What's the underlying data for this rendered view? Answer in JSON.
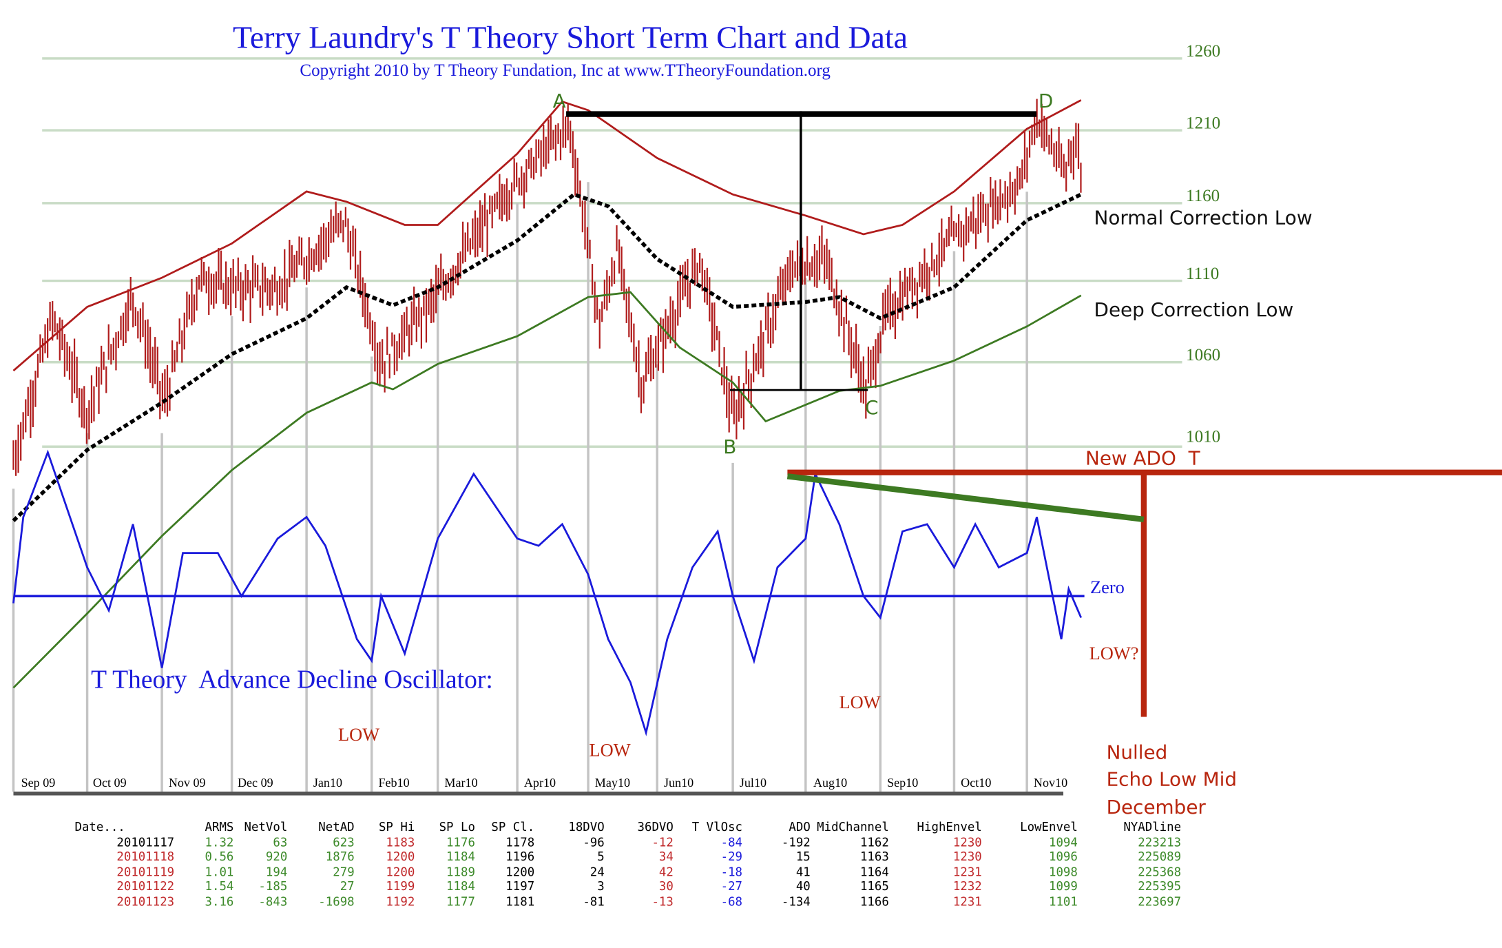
{
  "chart_data": {
    "type": "line",
    "title": "Terry Laundry's T Theory Short Term Chart and Data",
    "subtitle": "Copyright 2010 by T Theory Fundation, Inc at www.TTheoryFoundation.org",
    "x_tick_labels": [
      "Sep 09",
      "Oct 09",
      "Nov 09",
      "Dec 09",
      "Jan10",
      "Feb10",
      "Mar10",
      "Apr10",
      "May10",
      "Jun10",
      "Jul10",
      "Aug10",
      "Sep10",
      "Oct10",
      "Nov10"
    ],
    "y_tick_labels": [
      "1260",
      "1210",
      "1160",
      "1110",
      "1060",
      "1010"
    ],
    "y_ticks": [
      1260,
      1210,
      1160,
      1110,
      1060,
      1010
    ],
    "grid": true,
    "x_range": [
      "2009-09-01",
      "2010-11-23"
    ],
    "price_closes_approx": [
      [
        "2009-09-01",
        1002
      ],
      [
        "2009-09-17",
        1087
      ],
      [
        "2009-10-01",
        1030
      ],
      [
        "2009-10-20",
        1100
      ],
      [
        "2009-11-02",
        1036
      ],
      [
        "2009-11-17",
        1112
      ],
      [
        "2009-12-01",
        1106
      ],
      [
        "2009-12-20",
        1106
      ],
      [
        "2010-01-19",
        1149
      ],
      [
        "2010-02-05",
        1059
      ],
      [
        "2010-02-25",
        1094
      ],
      [
        "2010-03-31",
        1174
      ],
      [
        "2010-04-23",
        1214
      ],
      [
        "2010-05-06",
        1082
      ],
      [
        "2010-05-14",
        1130
      ],
      [
        "2010-05-25",
        1047
      ],
      [
        "2010-06-18",
        1124
      ],
      [
        "2010-07-01",
        1025
      ],
      [
        "2010-07-26",
        1118
      ],
      [
        "2010-08-09",
        1124
      ],
      [
        "2010-08-26",
        1043
      ],
      [
        "2010-09-03",
        1088
      ],
      [
        "2010-09-30",
        1136
      ],
      [
        "2010-10-29",
        1174
      ],
      [
        "2010-11-05",
        1220
      ],
      [
        "2010-11-17",
        1178
      ],
      [
        "2010-11-18",
        1196
      ],
      [
        "2010-11-19",
        1200
      ],
      [
        "2010-11-22",
        1197
      ],
      [
        "2010-11-23",
        1181
      ]
    ],
    "series": [
      {
        "key": "high_envelope",
        "color": "#b01c1c",
        "points": [
          [
            "2009-09-01",
            1055
          ],
          [
            "2009-10-01",
            1094
          ],
          [
            "2009-11-01",
            1112
          ],
          [
            "2009-12-01",
            1134
          ],
          [
            "2010-01-01",
            1168
          ],
          [
            "2010-01-20",
            1161
          ],
          [
            "2010-02-15",
            1146
          ],
          [
            "2010-03-01",
            1146
          ],
          [
            "2010-04-01",
            1194
          ],
          [
            "2010-04-20",
            1230
          ],
          [
            "2010-05-01",
            1224
          ],
          [
            "2010-06-01",
            1191
          ],
          [
            "2010-07-01",
            1166
          ],
          [
            "2010-08-01",
            1152
          ],
          [
            "2010-08-25",
            1140
          ],
          [
            "2010-09-10",
            1146
          ],
          [
            "2010-10-01",
            1168
          ],
          [
            "2010-11-01",
            1211
          ],
          [
            "2010-11-23",
            1231
          ]
        ]
      },
      {
        "key": "mid_channel",
        "color": "#000000",
        "points": [
          [
            "2009-09-01",
            966
          ],
          [
            "2009-10-01",
            1008
          ],
          [
            "2009-11-01",
            1036
          ],
          [
            "2009-12-01",
            1065
          ],
          [
            "2010-01-01",
            1087
          ],
          [
            "2010-01-20",
            1106
          ],
          [
            "2010-02-10",
            1095
          ],
          [
            "2010-03-01",
            1106
          ],
          [
            "2010-04-01",
            1136
          ],
          [
            "2010-04-25",
            1166
          ],
          [
            "2010-05-10",
            1158
          ],
          [
            "2010-06-01",
            1124
          ],
          [
            "2010-07-01",
            1094
          ],
          [
            "2010-08-01",
            1097
          ],
          [
            "2010-08-15",
            1100
          ],
          [
            "2010-09-01",
            1087
          ],
          [
            "2010-10-01",
            1106
          ],
          [
            "2010-11-01",
            1149
          ],
          [
            "2010-11-23",
            1166
          ]
        ]
      },
      {
        "key": "low_envelope",
        "color": "#3d7a22",
        "points": [
          [
            "2009-09-01",
            867
          ],
          [
            "2009-10-01",
            911
          ],
          [
            "2009-11-01",
            957
          ],
          [
            "2009-12-01",
            996
          ],
          [
            "2010-01-01",
            1030
          ],
          [
            "2010-02-01",
            1048
          ],
          [
            "2010-02-10",
            1044
          ],
          [
            "2010-03-01",
            1059
          ],
          [
            "2010-04-01",
            1076
          ],
          [
            "2010-05-01",
            1100
          ],
          [
            "2010-05-20",
            1103
          ],
          [
            "2010-06-10",
            1069
          ],
          [
            "2010-07-01",
            1048
          ],
          [
            "2010-07-15",
            1025
          ],
          [
            "2010-08-15",
            1043
          ],
          [
            "2010-09-01",
            1046
          ],
          [
            "2010-10-01",
            1061
          ],
          [
            "2010-11-01",
            1082
          ],
          [
            "2010-11-23",
            1101
          ]
        ]
      },
      {
        "key": "advance_decline_oscillator",
        "color": "#1a1adb",
        "points": [
          [
            "2009-09-01",
            -10
          ],
          [
            "2009-09-05",
            110
          ],
          [
            "2009-09-15",
            200
          ],
          [
            "2009-10-01",
            40
          ],
          [
            "2009-10-10",
            -20
          ],
          [
            "2009-10-20",
            100
          ],
          [
            "2009-11-01",
            -100
          ],
          [
            "2009-11-10",
            60
          ],
          [
            "2009-11-25",
            60
          ],
          [
            "2009-12-05",
            0
          ],
          [
            "2009-12-20",
            80
          ],
          [
            "2010-01-01",
            110
          ],
          [
            "2010-01-10",
            70
          ],
          [
            "2010-01-25",
            -60
          ],
          [
            "2010-02-01",
            -90
          ],
          [
            "2010-02-05",
            0
          ],
          [
            "2010-02-15",
            -80
          ],
          [
            "2010-03-01",
            80
          ],
          [
            "2010-03-15",
            170
          ],
          [
            "2010-04-01",
            80
          ],
          [
            "2010-04-10",
            70
          ],
          [
            "2010-04-20",
            100
          ],
          [
            "2010-05-01",
            30
          ],
          [
            "2010-05-10",
            -60
          ],
          [
            "2010-05-20",
            -120
          ],
          [
            "2010-05-27",
            -190
          ],
          [
            "2010-06-05",
            -60
          ],
          [
            "2010-06-15",
            40
          ],
          [
            "2010-06-25",
            90
          ],
          [
            "2010-07-01",
            0
          ],
          [
            "2010-07-10",
            -90
          ],
          [
            "2010-07-20",
            40
          ],
          [
            "2010-08-01",
            80
          ],
          [
            "2010-08-05",
            170
          ],
          [
            "2010-08-15",
            100
          ],
          [
            "2010-08-25",
            0
          ],
          [
            "2010-09-01",
            -30
          ],
          [
            "2010-09-10",
            90
          ],
          [
            "2010-09-20",
            100
          ],
          [
            "2010-10-01",
            40
          ],
          [
            "2010-10-10",
            100
          ],
          [
            "2010-10-20",
            40
          ],
          [
            "2010-11-01",
            60
          ],
          [
            "2010-11-05",
            110
          ],
          [
            "2010-11-15",
            -60
          ],
          [
            "2010-11-18",
            10
          ],
          [
            "2010-11-23",
            -30
          ]
        ]
      }
    ],
    "annotations": {
      "A": "A",
      "B": "B",
      "C": "C",
      "D": "D",
      "normal_correction": "Normal Correction Low",
      "deep_correction": "Deep Correction Low",
      "new_ado_t": "New ADO  T",
      "zero": "Zero",
      "oscillator_title": "T Theory  Advance Decline Oscillator:",
      "low1": "LOW",
      "low2": "LOW",
      "low3": "LOW",
      "low4": "LOW?",
      "nulled": [
        "Nulled",
        "Echo Low Mid",
        "December"
      ]
    }
  },
  "table": {
    "headers": [
      "Date...",
      "ARMS",
      "NetVol",
      "NetAD",
      "SP Hi",
      "SP Lo",
      "SP Cl.",
      "18DVO",
      "36DVO",
      "T VlOsc",
      "ADO",
      "MidChannel",
      "HighEnvel",
      "LowEnvel",
      "NYADline"
    ],
    "rows": [
      [
        "20101117",
        "1.32",
        "63",
        "623",
        "1183",
        "1176",
        "1178",
        "-96",
        "-12",
        "-84",
        "-192",
        "1162",
        "1230",
        "1094",
        "223213"
      ],
      [
        "20101118",
        "0.56",
        "920",
        "1876",
        "1200",
        "1184",
        "1196",
        "5",
        "34",
        "-29",
        "15",
        "1163",
        "1230",
        "1096",
        "225089"
      ],
      [
        "20101119",
        "1.01",
        "194",
        "279",
        "1200",
        "1189",
        "1200",
        "24",
        "42",
        "-18",
        "41",
        "1164",
        "1231",
        "1098",
        "225368"
      ],
      [
        "20101122",
        "1.54",
        "-185",
        "27",
        "1199",
        "1184",
        "1197",
        "3",
        "30",
        "-27",
        "40",
        "1165",
        "1232",
        "1099",
        "225395"
      ],
      [
        "20101123",
        "3.16",
        "-843",
        "-1698",
        "1192",
        "1177",
        "1181",
        "-81",
        "-13",
        "-68",
        "-134",
        "1166",
        "1231",
        "1101",
        "223697"
      ]
    ]
  },
  "colors": {
    "grid": "#c9dcc6",
    "price": "#b01c1c",
    "oscillator": "#1a1adb",
    "annotation_red": "#b8260e",
    "annotation_green": "#3d7a22"
  }
}
